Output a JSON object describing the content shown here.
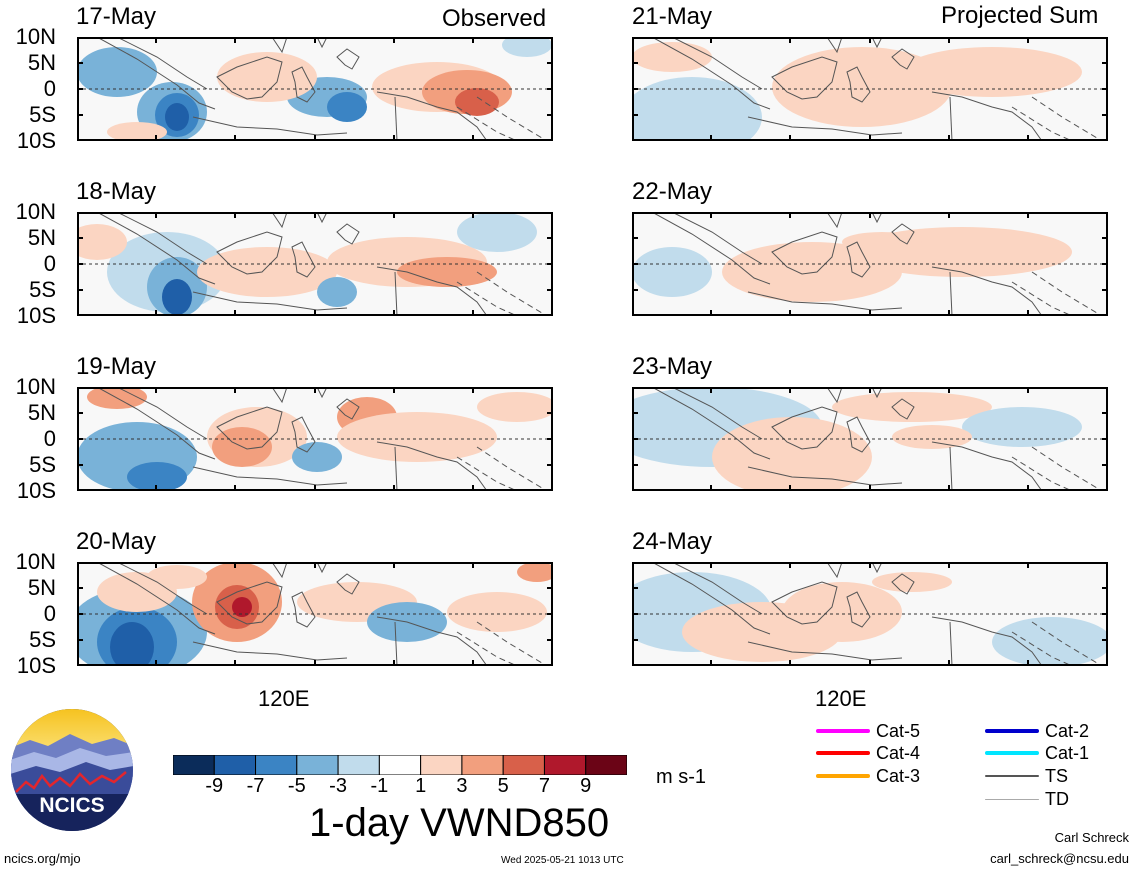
{
  "headers": {
    "observed": "Observed",
    "projected": "Projected Sum"
  },
  "lat_labels": [
    "10N",
    "5N",
    "0",
    "5S",
    "10S"
  ],
  "lon_label": "120E",
  "observed_dates": [
    "17-May",
    "18-May",
    "19-May",
    "20-May"
  ],
  "projected_dates": [
    "21-May",
    "22-May",
    "23-May",
    "24-May"
  ],
  "colorbar": {
    "ticks": [
      "-9",
      "-7",
      "-5",
      "-3",
      "-1",
      "1",
      "3",
      "5",
      "7",
      "9"
    ],
    "colors": [
      "#0b2c5a",
      "#1f5fa8",
      "#3b84c4",
      "#79b2d8",
      "#c1dcec",
      "#ffffff",
      "#fbd5c2",
      "#f29f7e",
      "#d8604a",
      "#b0182c",
      "#6b0416"
    ],
    "units": "m s-1",
    "title": "1-day VWND850"
  },
  "legend": [
    {
      "label": "Cat-5",
      "color": "#ff00ff"
    },
    {
      "label": "Cat-4",
      "color": "#ff0000"
    },
    {
      "label": "Cat-3",
      "color": "#ffa500"
    },
    {
      "label": "Cat-2",
      "color": "#0000cc"
    },
    {
      "label": "Cat-1",
      "color": "#00e5ff"
    },
    {
      "label": "TS",
      "color": "#555555"
    },
    {
      "label": "TD",
      "color": "#aaaaaa"
    }
  ],
  "logo": {
    "text": "NCICS"
  },
  "footer": {
    "url": "ncics.org/mjo",
    "timestamp": "Wed 2025-05-21 1013 UTC",
    "author": "Carl Schreck",
    "email": "carl_schreck@ncsu.edu"
  }
}
